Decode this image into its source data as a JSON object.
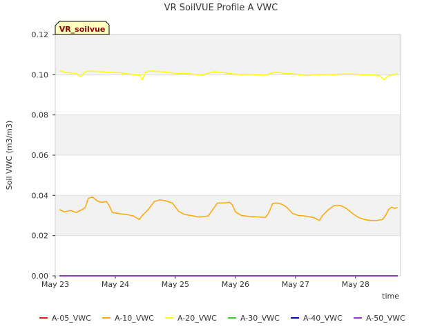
{
  "chart_data": {
    "type": "line",
    "title": "VR SoilVUE Profile A VWC",
    "xlabel": "time",
    "ylabel": "Soil VWC (m3/m3)",
    "badge": "VR_soilvue",
    "xlim": [
      0,
      5.75
    ],
    "ylim": [
      0,
      0.12
    ],
    "x_ticks": [
      {
        "value": 0,
        "label": "May 23"
      },
      {
        "value": 1,
        "label": "May 24"
      },
      {
        "value": 2,
        "label": "May 25"
      },
      {
        "value": 3,
        "label": "May 26"
      },
      {
        "value": 4,
        "label": "May 27"
      },
      {
        "value": 5,
        "label": "May 28"
      }
    ],
    "y_ticks": [
      {
        "value": 0.0,
        "label": "0.00"
      },
      {
        "value": 0.02,
        "label": "0.02"
      },
      {
        "value": 0.04,
        "label": "0.04"
      },
      {
        "value": 0.06,
        "label": "0.06"
      },
      {
        "value": 0.08,
        "label": "0.08"
      },
      {
        "value": 0.1,
        "label": "0.10"
      },
      {
        "value": 0.12,
        "label": "0.12"
      }
    ],
    "bands": [
      [
        0.02,
        0.04
      ],
      [
        0.06,
        0.08
      ],
      [
        0.1,
        0.12
      ]
    ],
    "series": [
      {
        "name": "A-05_VWC",
        "color": "#e31a1c",
        "points": [
          [
            0.07,
            0.0
          ],
          [
            5.7,
            0.0
          ]
        ]
      },
      {
        "name": "A-10_VWC",
        "color": "#ffa500",
        "points": [
          [
            0.07,
            0.033
          ],
          [
            0.15,
            0.0318
          ],
          [
            0.25,
            0.0325
          ],
          [
            0.35,
            0.0315
          ],
          [
            0.45,
            0.033
          ],
          [
            0.5,
            0.034
          ],
          [
            0.55,
            0.0385
          ],
          [
            0.62,
            0.0392
          ],
          [
            0.7,
            0.0372
          ],
          [
            0.78,
            0.0365
          ],
          [
            0.85,
            0.037
          ],
          [
            0.9,
            0.0348
          ],
          [
            0.95,
            0.0315
          ],
          [
            1.1,
            0.0308
          ],
          [
            1.2,
            0.0304
          ],
          [
            1.3,
            0.0298
          ],
          [
            1.4,
            0.028
          ],
          [
            1.45,
            0.03
          ],
          [
            1.55,
            0.033
          ],
          [
            1.65,
            0.037
          ],
          [
            1.75,
            0.0378
          ],
          [
            1.85,
            0.0372
          ],
          [
            1.95,
            0.0362
          ],
          [
            2.05,
            0.0322
          ],
          [
            2.15,
            0.0305
          ],
          [
            2.3,
            0.0298
          ],
          [
            2.4,
            0.0292
          ],
          [
            2.55,
            0.0298
          ],
          [
            2.6,
            0.032
          ],
          [
            2.7,
            0.0362
          ],
          [
            2.8,
            0.0362
          ],
          [
            2.9,
            0.0366
          ],
          [
            2.95,
            0.0352
          ],
          [
            3.0,
            0.0318
          ],
          [
            3.1,
            0.03
          ],
          [
            3.25,
            0.0295
          ],
          [
            3.4,
            0.0292
          ],
          [
            3.5,
            0.029
          ],
          [
            3.55,
            0.031
          ],
          [
            3.62,
            0.036
          ],
          [
            3.7,
            0.0362
          ],
          [
            3.78,
            0.0355
          ],
          [
            3.85,
            0.0342
          ],
          [
            3.95,
            0.031
          ],
          [
            4.05,
            0.03
          ],
          [
            4.15,
            0.0298
          ],
          [
            4.3,
            0.029
          ],
          [
            4.4,
            0.0275
          ],
          [
            4.45,
            0.03
          ],
          [
            4.55,
            0.033
          ],
          [
            4.65,
            0.035
          ],
          [
            4.75,
            0.035
          ],
          [
            4.85,
            0.0335
          ],
          [
            4.95,
            0.031
          ],
          [
            5.05,
            0.029
          ],
          [
            5.15,
            0.028
          ],
          [
            5.25,
            0.0275
          ],
          [
            5.35,
            0.0275
          ],
          [
            5.45,
            0.028
          ],
          [
            5.5,
            0.03
          ],
          [
            5.55,
            0.033
          ],
          [
            5.6,
            0.0342
          ],
          [
            5.65,
            0.0335
          ],
          [
            5.7,
            0.034
          ]
        ]
      },
      {
        "name": "A-20_VWC",
        "color": "#ffff00",
        "points": [
          [
            0.07,
            0.102
          ],
          [
            0.2,
            0.101
          ],
          [
            0.35,
            0.1005
          ],
          [
            0.42,
            0.099
          ],
          [
            0.5,
            0.1015
          ],
          [
            0.6,
            0.1018
          ],
          [
            0.75,
            0.1015
          ],
          [
            0.9,
            0.1012
          ],
          [
            1.05,
            0.101
          ],
          [
            1.2,
            0.1005
          ],
          [
            1.3,
            0.1
          ],
          [
            1.4,
            0.0998
          ],
          [
            1.45,
            0.0975
          ],
          [
            1.5,
            0.1012
          ],
          [
            1.6,
            0.102
          ],
          [
            1.75,
            0.1015
          ],
          [
            1.9,
            0.1012
          ],
          [
            2.0,
            0.1005
          ],
          [
            2.15,
            0.1008
          ],
          [
            2.3,
            0.1002
          ],
          [
            2.45,
            0.0998
          ],
          [
            2.55,
            0.1008
          ],
          [
            2.65,
            0.1015
          ],
          [
            2.8,
            0.101
          ],
          [
            2.95,
            0.1005
          ],
          [
            3.05,
            0.1
          ],
          [
            3.2,
            0.1002
          ],
          [
            3.35,
            0.1
          ],
          [
            3.5,
            0.0998
          ],
          [
            3.65,
            0.1012
          ],
          [
            3.8,
            0.1008
          ],
          [
            3.95,
            0.1005
          ],
          [
            4.05,
            0.1
          ],
          [
            4.2,
            0.0995
          ],
          [
            4.3,
            0.1
          ],
          [
            4.45,
            0.1002
          ],
          [
            4.6,
            0.1
          ],
          [
            4.75,
            0.1003
          ],
          [
            4.9,
            0.1005
          ],
          [
            5.05,
            0.1
          ],
          [
            5.2,
            0.0998
          ],
          [
            5.3,
            0.0998
          ],
          [
            5.4,
            0.0995
          ],
          [
            5.47,
            0.0975
          ],
          [
            5.55,
            0.0995
          ],
          [
            5.62,
            0.1
          ],
          [
            5.7,
            0.1005
          ]
        ]
      },
      {
        "name": "A-30_VWC",
        "color": "#33cc33",
        "points": [
          [
            0.07,
            0.0
          ],
          [
            5.7,
            0.0
          ]
        ]
      },
      {
        "name": "A-40_VWC",
        "color": "#0000cc",
        "points": [
          [
            0.07,
            0.0
          ],
          [
            5.7,
            0.0
          ]
        ]
      },
      {
        "name": "A-50_VWC",
        "color": "#9932cc",
        "points": [
          [
            0.07,
            0.0
          ],
          [
            5.7,
            0.0
          ]
        ]
      }
    ],
    "legend_position": "bottom",
    "grid": true
  }
}
